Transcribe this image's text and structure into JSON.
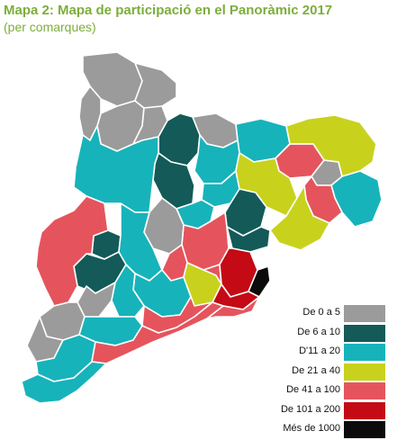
{
  "title": "Mapa 2: Mapa de participació en el Panoràmic 2017",
  "subtitle": "(per comarques)",
  "legend": [
    {
      "label": "De 0 a 5",
      "color": "#9b9b9b"
    },
    {
      "label": "De 6 a 10",
      "color": "#135a58"
    },
    {
      "label": "D'11 a 20",
      "color": "#17b3ba"
    },
    {
      "label": "De 21 a 40",
      "color": "#c8d21d"
    },
    {
      "label": "De 41 a 100",
      "color": "#e5545c"
    },
    {
      "label": "De 101 a 200",
      "color": "#c40a14"
    },
    {
      "label": "Més de 1000",
      "color": "#0b0b0b"
    }
  ],
  "comarques": [
    {
      "class": 0
    },
    {
      "class": 0
    },
    {
      "class": 0
    },
    {
      "class": 0
    },
    {
      "class": 0
    },
    {
      "class": 1
    },
    {
      "class": 1
    },
    {
      "class": 0
    },
    {
      "class": 2
    },
    {
      "class": 2
    },
    {
      "class": 4
    },
    {
      "class": 0
    },
    {
      "class": 2
    },
    {
      "class": 3
    },
    {
      "class": 4
    },
    {
      "class": 2
    },
    {
      "class": 1
    },
    {
      "class": 2
    },
    {
      "class": 4
    },
    {
      "class": 0
    },
    {
      "class": 4
    },
    {
      "class": 1
    },
    {
      "class": 3
    },
    {
      "class": 3
    },
    {
      "class": 1
    },
    {
      "class": 2
    },
    {
      "class": 1
    },
    {
      "class": 2
    },
    {
      "class": 0
    },
    {
      "class": 2
    },
    {
      "class": 2
    },
    {
      "class": 4
    },
    {
      "class": 4
    },
    {
      "class": 3
    },
    {
      "class": 5
    },
    {
      "class": 6
    },
    {
      "class": 5
    },
    {
      "class": 0
    },
    {
      "class": 2
    },
    {
      "class": 0
    },
    {
      "class": 2
    },
    {
      "class": 4
    },
    {
      "class": 4
    },
    {
      "class": 2
    }
  ]
}
